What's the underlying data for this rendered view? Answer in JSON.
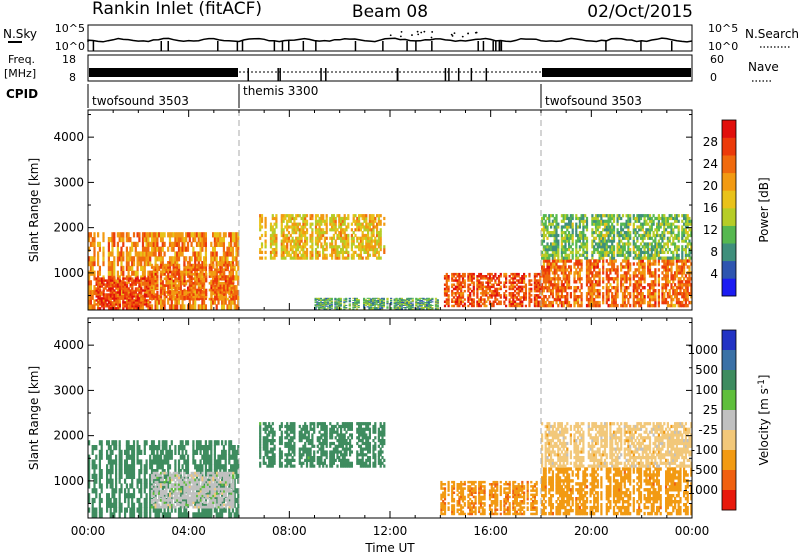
{
  "header": {
    "station": "Rankin Inlet (fitACF)",
    "beam": "Beam 08",
    "date": "02/Oct/2015"
  },
  "strip": {
    "nsky_label": "N.Sky",
    "nsearch_label": "N.Search",
    "freq_label": "Freq.",
    "freq_unit": "[MHz]",
    "nave_label": "Nave",
    "cpid_label": "CPID",
    "nsky_ticks": [
      "10^5",
      "10^0"
    ],
    "nsearch_ticks": [
      "10^5",
      "10^0"
    ],
    "freq_ticks": [
      "18",
      "8"
    ],
    "nave_ticks": [
      "60",
      "0"
    ],
    "cpid_segments": [
      {
        "name": "twofsound",
        "id": "3503",
        "start_h": 0,
        "end_h": 6
      },
      {
        "name": "themis",
        "id": "3300",
        "start_h": 6,
        "end_h": 18
      },
      {
        "name": "twofsound",
        "id": "3503",
        "start_h": 18,
        "end_h": 24
      }
    ]
  },
  "chart_data": [
    {
      "type": "heatmap",
      "title": "",
      "xlabel": "Time UT",
      "ylabel": "Slant Range [km]",
      "xlim": [
        0,
        24
      ],
      "ylim": [
        180,
        4600
      ],
      "xticks": [
        "00:00",
        "04:00",
        "08:00",
        "12:00",
        "16:00",
        "20:00",
        "00:00"
      ],
      "yticks": [
        1000,
        2000,
        3000,
        4000
      ],
      "colorbar": {
        "label": "Power [dB]",
        "ticks": [
          4,
          8,
          12,
          16,
          20,
          24,
          28
        ],
        "range": [
          0,
          32
        ],
        "colors": [
          "#1c1cf2",
          "#2e55b0",
          "#3f8f7c",
          "#56b850",
          "#b6cd27",
          "#e9c21a",
          "#f29a12",
          "#f06a0d",
          "#ec3a0a",
          "#e10f0c"
        ]
      },
      "regions": [
        {
          "t": [
            0.0,
            6.0
          ],
          "r": [
            200,
            1900
          ],
          "value": 22
        },
        {
          "t": [
            0.3,
            2.5
          ],
          "r": [
            200,
            900
          ],
          "value": 27
        },
        {
          "t": [
            2.5,
            5.8
          ],
          "r": [
            400,
            1200
          ],
          "value": 24
        },
        {
          "t": [
            6.8,
            11.8
          ],
          "r": [
            1300,
            2300
          ],
          "value": 18
        },
        {
          "t": [
            14.0,
            18.0
          ],
          "r": [
            250,
            1000
          ],
          "value": 26
        },
        {
          "t": [
            18.0,
            24.0
          ],
          "r": [
            250,
            1300
          ],
          "value": 24
        },
        {
          "t": [
            18.0,
            24.0
          ],
          "r": [
            1300,
            2300
          ],
          "value": 12
        },
        {
          "t": [
            9.0,
            14.0
          ],
          "r": [
            200,
            450
          ],
          "value": 10
        }
      ]
    },
    {
      "type": "heatmap",
      "title": "",
      "xlabel": "Time UT",
      "ylabel": "Slant Range [km]",
      "xlim": [
        0,
        24
      ],
      "ylim": [
        180,
        4600
      ],
      "xticks": [
        "00:00",
        "04:00",
        "08:00",
        "12:00",
        "16:00",
        "20:00",
        "00:00"
      ],
      "yticks": [
        1000,
        2000,
        3000,
        4000
      ],
      "colorbar": {
        "label": "Velocity [m s^-1]",
        "ticks": [
          "1000",
          "500",
          "100",
          "25",
          "-25",
          "-100",
          "-500",
          "-1000"
        ],
        "colors": [
          "#2233c4",
          "#3a71a6",
          "#3e8c5f",
          "#5fbf3c",
          "#c0c0c0",
          "#f2c87a",
          "#f29a12",
          "#f06010",
          "#e8190c"
        ]
      },
      "regions": [
        {
          "t": [
            0.0,
            6.0
          ],
          "r": [
            200,
            1900
          ],
          "value": 300
        },
        {
          "t": [
            2.5,
            5.8
          ],
          "r": [
            400,
            1200
          ],
          "value": 0
        },
        {
          "t": [
            6.8,
            11.8
          ],
          "r": [
            1300,
            2300
          ],
          "value": 200
        },
        {
          "t": [
            14.0,
            18.0
          ],
          "r": [
            250,
            1000
          ],
          "value": -400
        },
        {
          "t": [
            18.0,
            24.0
          ],
          "r": [
            250,
            1300
          ],
          "value": -350
        },
        {
          "t": [
            18.0,
            24.0
          ],
          "r": [
            1300,
            2300
          ],
          "value": -60
        }
      ]
    }
  ]
}
